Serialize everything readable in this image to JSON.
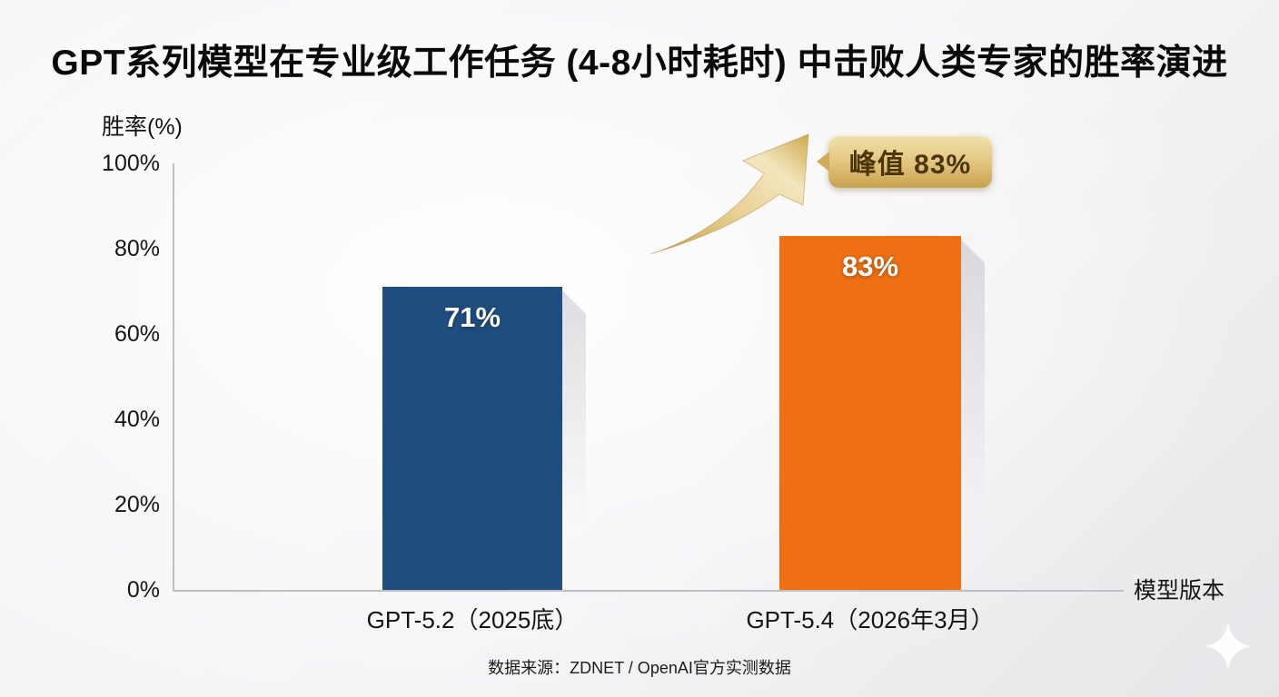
{
  "page": {
    "title": "GPT系列模型在专业级工作任务 (4-8小时耗时) 中击败人类专家的胜率演进",
    "source": "数据来源：ZDNET / OpenAI官方实测数据"
  },
  "chart_data": {
    "type": "bar",
    "title": "GPT系列模型在专业级工作任务 (4-8小时耗时) 中击败人类专家的胜率演进",
    "categories": [
      "GPT-5.2（2025底）",
      "GPT-5.4（2026年3月）"
    ],
    "values": [
      71,
      83
    ],
    "bar_labels": [
      "71%",
      "83%"
    ],
    "series_colors": [
      "#1f4e7e",
      "#ee7012"
    ],
    "ylabel": "胜率(%)",
    "xlabel": "模型版本",
    "ylim": [
      0,
      100
    ],
    "yticks": [
      "100%",
      "80%",
      "60%",
      "40%",
      "20%",
      "0%"
    ],
    "grid": false,
    "legend": "none",
    "annotation": {
      "text": "峰值 83%",
      "target_category": "GPT-5.4（2026年3月）",
      "style_color": "#d3ab58"
    },
    "source": "数据来源：ZDNET / OpenAI官方实测数据"
  },
  "icons": {
    "growth_arrow": "gold curved up-right swoosh arrow",
    "sparkle": "white four-point star watermark"
  },
  "colors": {
    "bar_blue": "#1f4e7e",
    "bar_orange": "#ee7012",
    "gold_light": "#f1e2ae",
    "gold_dark": "#c7a24e",
    "callout_text": "#4b3509",
    "axis_line": "#bfbfc4"
  }
}
